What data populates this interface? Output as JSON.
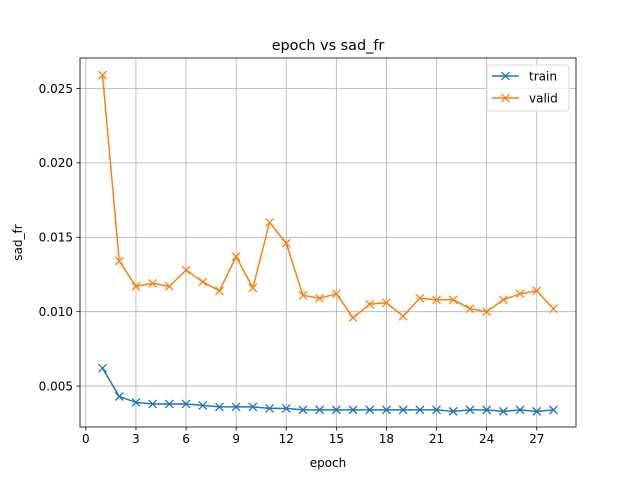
{
  "chart_data": {
    "type": "line",
    "title": "epoch vs sad_fr",
    "xlabel": "epoch",
    "ylabel": "sad_fr",
    "xlim": [
      -0.35,
      29.35
    ],
    "ylim": [
      0.00225,
      0.02705
    ],
    "xticks": [
      0,
      3,
      6,
      9,
      12,
      15,
      18,
      21,
      24,
      27
    ],
    "yticks": [
      0.005,
      0.01,
      0.015,
      0.02,
      0.025
    ],
    "ytick_labels": [
      "0.005",
      "0.010",
      "0.015",
      "0.020",
      "0.025"
    ],
    "grid": true,
    "legend_position": "top-right",
    "x": [
      1,
      2,
      3,
      4,
      5,
      6,
      7,
      8,
      9,
      10,
      11,
      12,
      13,
      14,
      15,
      16,
      17,
      18,
      19,
      20,
      21,
      22,
      23,
      24,
      25,
      26,
      27,
      28
    ],
    "series": [
      {
        "name": "train",
        "color": "#1f77b4",
        "marker": "x",
        "values": [
          0.0062,
          0.0043,
          0.0039,
          0.0038,
          0.0038,
          0.0038,
          0.0037,
          0.0036,
          0.0036,
          0.0036,
          0.0035,
          0.0035,
          0.0034,
          0.0034,
          0.0034,
          0.0034,
          0.0034,
          0.0034,
          0.0034,
          0.0034,
          0.0034,
          0.0033,
          0.0034,
          0.0034,
          0.0033,
          0.0034,
          0.0033,
          0.0034
        ]
      },
      {
        "name": "valid",
        "color": "#ff7f0e",
        "marker": "x",
        "values": [
          0.0259,
          0.0134,
          0.0117,
          0.0119,
          0.0117,
          0.0128,
          0.012,
          0.0114,
          0.0137,
          0.0116,
          0.016,
          0.0146,
          0.0111,
          0.0109,
          0.0112,
          0.0096,
          0.0105,
          0.0106,
          0.0097,
          0.0109,
          0.0108,
          0.0108,
          0.0102,
          0.01,
          0.0108,
          0.0112,
          0.0114,
          0.0102
        ]
      }
    ]
  }
}
